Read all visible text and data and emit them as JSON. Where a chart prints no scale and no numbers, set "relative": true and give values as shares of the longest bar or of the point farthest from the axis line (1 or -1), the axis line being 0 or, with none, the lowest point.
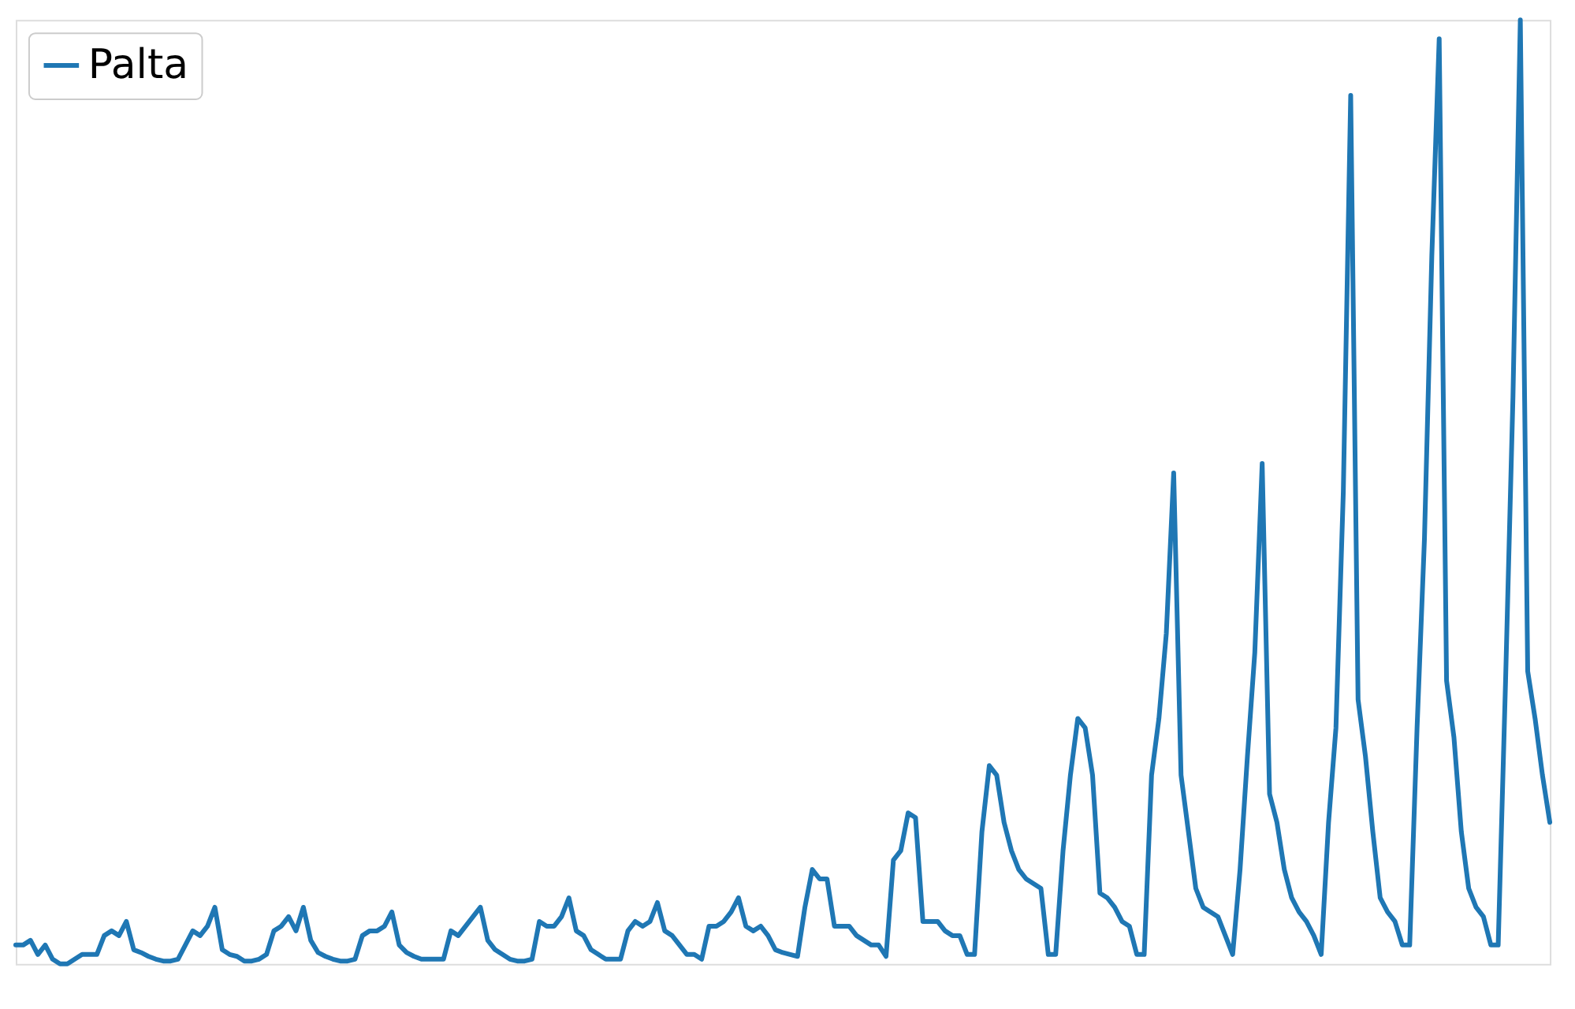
{
  "chart_data": {
    "type": "line",
    "relative": true,
    "legend": "top left",
    "series": [
      {
        "name": "Palta",
        "color": "#1f77b4",
        "values": [
          0.02,
          0.02,
          0.025,
          0.01,
          0.02,
          0.005,
          0,
          0,
          0.005,
          0.01,
          0.01,
          0.01,
          0.03,
          0.035,
          0.03,
          0.045,
          0.015,
          0.012,
          0.008,
          0.005,
          0.003,
          0.003,
          0.005,
          0.02,
          0.035,
          0.03,
          0.04,
          0.06,
          0.015,
          0.01,
          0.008,
          0.003,
          0.003,
          0.005,
          0.01,
          0.035,
          0.04,
          0.05,
          0.035,
          0.06,
          0.025,
          0.012,
          0.008,
          0.005,
          0.003,
          0.003,
          0.005,
          0.03,
          0.035,
          0.035,
          0.04,
          0.055,
          0.02,
          0.012,
          0.008,
          0.005,
          0.005,
          0.005,
          0.005,
          0.035,
          0.03,
          0.04,
          0.05,
          0.06,
          0.025,
          0.015,
          0.01,
          0.005,
          0.003,
          0.003,
          0.005,
          0.045,
          0.04,
          0.04,
          0.05,
          0.07,
          0.035,
          0.03,
          0.015,
          0.01,
          0.005,
          0.005,
          0.005,
          0.035,
          0.045,
          0.04,
          0.045,
          0.065,
          0.035,
          0.03,
          0.02,
          0.01,
          0.01,
          0.005,
          0.04,
          0.04,
          0.045,
          0.055,
          0.07,
          0.04,
          0.035,
          0.04,
          0.03,
          0.015,
          0.012,
          0.01,
          0.008,
          0.06,
          0.1,
          0.09,
          0.09,
          0.04,
          0.04,
          0.04,
          0.03,
          0.025,
          0.02,
          0.02,
          0.008,
          0.11,
          0.12,
          0.16,
          0.155,
          0.045,
          0.045,
          0.045,
          0.035,
          0.03,
          0.03,
          0.01,
          0.01,
          0.14,
          0.21,
          0.2,
          0.15,
          0.12,
          0.1,
          0.09,
          0.085,
          0.08,
          0.01,
          0.01,
          0.12,
          0.2,
          0.26,
          0.25,
          0.2,
          0.075,
          0.07,
          0.06,
          0.045,
          0.04,
          0.01,
          0.01,
          0.2,
          0.26,
          0.35,
          0.52,
          0.2,
          0.14,
          0.08,
          0.06,
          0.055,
          0.05,
          0.03,
          0.01,
          0.1,
          0.22,
          0.33,
          0.53,
          0.18,
          0.15,
          0.1,
          0.07,
          0.055,
          0.045,
          0.03,
          0.01,
          0.15,
          0.25,
          0.5,
          0.92,
          0.28,
          0.22,
          0.14,
          0.07,
          0.055,
          0.045,
          0.02,
          0.02,
          0.25,
          0.45,
          0.75,
          0.98,
          0.3,
          0.24,
          0.14,
          0.08,
          0.06,
          0.05,
          0.02,
          0.02,
          0.3,
          0.6,
          1.0,
          0.31,
          0.26,
          0.2,
          0.15
        ]
      }
    ],
    "categories": [
      null,
      null,
      null,
      null,
      null,
      null,
      null,
      null,
      null,
      null,
      null,
      null,
      null,
      null,
      null,
      null,
      null,
      null,
      null,
      null,
      null,
      null,
      null,
      null,
      null,
      null,
      null,
      null,
      null,
      null,
      null,
      null,
      null,
      null,
      null,
      null,
      null,
      null,
      null,
      null,
      null,
      null,
      null,
      null,
      null,
      null,
      null,
      null,
      null,
      null,
      null,
      null,
      null,
      null,
      null,
      null,
      null,
      null,
      null,
      null,
      null,
      null,
      null,
      null,
      null,
      null,
      null,
      null,
      null,
      null,
      null,
      null,
      null,
      null,
      null,
      null,
      null,
      null,
      null,
      null,
      null,
      null,
      null,
      null,
      null,
      null,
      null,
      null,
      null,
      null,
      null,
      null,
      null,
      null,
      null,
      null,
      null,
      null,
      null,
      null,
      null,
      null,
      null,
      null,
      null,
      null,
      null,
      null,
      null,
      null,
      null,
      null,
      null,
      null,
      null,
      null,
      null,
      null,
      null,
      null,
      null,
      null,
      null,
      null,
      null,
      null,
      null,
      null,
      null,
      null,
      null,
      null,
      null,
      null,
      null,
      null,
      null,
      null,
      null,
      null,
      null,
      null,
      null,
      null,
      null,
      null,
      null,
      null,
      null,
      null,
      null,
      null,
      null,
      null,
      null,
      null,
      null,
      null,
      null,
      null,
      null,
      null,
      null,
      null,
      null,
      null,
      null,
      null,
      null,
      null,
      null,
      null,
      null,
      null,
      null,
      null,
      null,
      null,
      null,
      null,
      null,
      null,
      null,
      null,
      null,
      null,
      null,
      null,
      null,
      null,
      null,
      null,
      null,
      null,
      null,
      null,
      null,
      null,
      null,
      null,
      null,
      null,
      null,
      null,
      null,
      null,
      null,
      null,
      null
    ]
  }
}
